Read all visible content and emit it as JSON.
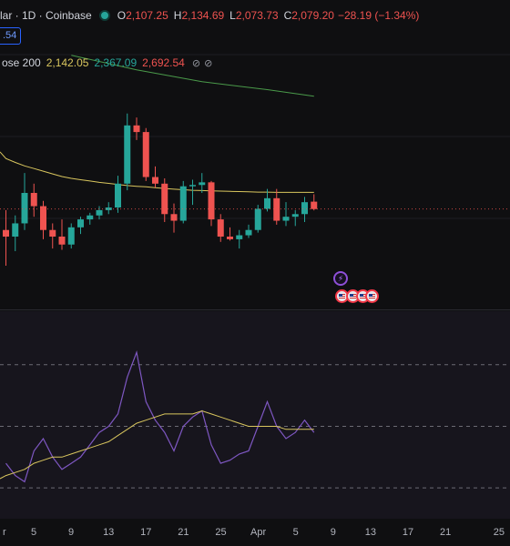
{
  "legend": {
    "symbol_title": "lar · 1D · Coinbase",
    "open_label": "O",
    "open": "2,107.25",
    "high_label": "H",
    "high": "2,134.69",
    "low_label": "L",
    "low": "2,073.73",
    "close_label": "C",
    "close": "2,079.20",
    "change": "−28.19 (−1.34%)"
  },
  "price_badge": ".54",
  "ma_legend": {
    "label": "ose 200",
    "value1": "2,142.05",
    "value2": "2,367.09",
    "value3": "2,692.54"
  },
  "icons": {
    "status": "market-open-dot-icon",
    "visibility": "eye-crossed-icon",
    "event": "lightning-event-icon",
    "flag": "us-flag-icon"
  },
  "colors": {
    "up": "#26a69a",
    "down": "#ef5350",
    "ma_line": "#d9c65e",
    "ma200_line": "#4a9a4a",
    "rsi_line": "#7e57c2",
    "rsi_ma": "#d9c65e"
  },
  "x_axis": {
    "labels": [
      "r",
      "5",
      "9",
      "13",
      "17",
      "21",
      "25",
      "Apr",
      "5",
      "9",
      "13",
      "17",
      "21",
      "25"
    ]
  },
  "chart_data": {
    "type": "candlestick",
    "candles": [
      {
        "o": 2000,
        "h": 2075,
        "l": 1865,
        "c": 1975
      },
      {
        "o": 1975,
        "h": 2055,
        "l": 1920,
        "c": 2025
      },
      {
        "o": 2025,
        "h": 2215,
        "l": 2000,
        "c": 2140
      },
      {
        "o": 2140,
        "h": 2175,
        "l": 2050,
        "c": 2090
      },
      {
        "o": 2090,
        "h": 2110,
        "l": 1965,
        "c": 2000
      },
      {
        "o": 2000,
        "h": 2025,
        "l": 1930,
        "c": 1975
      },
      {
        "o": 1975,
        "h": 2040,
        "l": 1925,
        "c": 1945
      },
      {
        "o": 1945,
        "h": 2025,
        "l": 1930,
        "c": 2010
      },
      {
        "o": 2010,
        "h": 2050,
        "l": 1985,
        "c": 2040
      },
      {
        "o": 2040,
        "h": 2065,
        "l": 2020,
        "c": 2055
      },
      {
        "o": 2055,
        "h": 2090,
        "l": 2040,
        "c": 2075
      },
      {
        "o": 2075,
        "h": 2105,
        "l": 2060,
        "c": 2085
      },
      {
        "o": 2085,
        "h": 2205,
        "l": 2065,
        "c": 2175
      },
      {
        "o": 2175,
        "h": 2440,
        "l": 2150,
        "c": 2395
      },
      {
        "o": 2395,
        "h": 2425,
        "l": 2340,
        "c": 2370
      },
      {
        "o": 2370,
        "h": 2385,
        "l": 2185,
        "c": 2200
      },
      {
        "o": 2200,
        "h": 2240,
        "l": 2160,
        "c": 2175
      },
      {
        "o": 2175,
        "h": 2195,
        "l": 2030,
        "c": 2060
      },
      {
        "o": 2060,
        "h": 2100,
        "l": 1990,
        "c": 2035
      },
      {
        "o": 2035,
        "h": 2185,
        "l": 2025,
        "c": 2165
      },
      {
        "o": 2165,
        "h": 2190,
        "l": 2095,
        "c": 2170
      },
      {
        "o": 2170,
        "h": 2215,
        "l": 2140,
        "c": 2180
      },
      {
        "o": 2180,
        "h": 2185,
        "l": 2015,
        "c": 2040
      },
      {
        "o": 2040,
        "h": 2060,
        "l": 1955,
        "c": 1975
      },
      {
        "o": 1975,
        "h": 2010,
        "l": 1960,
        "c": 1965
      },
      {
        "o": 1965,
        "h": 2000,
        "l": 1930,
        "c": 1980
      },
      {
        "o": 1980,
        "h": 2020,
        "l": 1970,
        "c": 2000
      },
      {
        "o": 2000,
        "h": 2095,
        "l": 1990,
        "c": 2080
      },
      {
        "o": 2080,
        "h": 2155,
        "l": 2070,
        "c": 2120
      },
      {
        "o": 2120,
        "h": 2155,
        "l": 2020,
        "c": 2035
      },
      {
        "o": 2035,
        "h": 2105,
        "l": 2015,
        "c": 2050
      },
      {
        "o": 2050,
        "h": 2075,
        "l": 2015,
        "c": 2060
      },
      {
        "o": 2060,
        "h": 2125,
        "l": 2030,
        "c": 2105
      },
      {
        "o": 2107,
        "h": 2135,
        "l": 2074,
        "c": 2079
      }
    ],
    "ma": [
      2270,
      2255,
      2242,
      2232,
      2222,
      2212,
      2202,
      2195,
      2190,
      2185,
      2180,
      2176,
      2172,
      2168,
      2165,
      2163,
      2160,
      2157,
      2154,
      2152,
      2150,
      2149,
      2148,
      2147,
      2146,
      2145,
      2144,
      2143,
      2143,
      2142,
      2142,
      2142,
      2142,
      2142
    ],
    "ma200": [
      {
        "i": 7,
        "v": 2660
      },
      {
        "i": 14,
        "v": 2605
      },
      {
        "i": 21,
        "v": 2560
      },
      {
        "i": 28,
        "v": 2530
      },
      {
        "i": 33,
        "v": 2505
      }
    ],
    "rsi": [
      38,
      34,
      32,
      42,
      46,
      40,
      36,
      38,
      40,
      44,
      48,
      50,
      54,
      66,
      74,
      58,
      52,
      48,
      42,
      50,
      53,
      55,
      44,
      38,
      39,
      41,
      42,
      50,
      58,
      50,
      46,
      48,
      52,
      48
    ],
    "rsi_ma": [
      34,
      35,
      36,
      38,
      39,
      40,
      40,
      41,
      42,
      43,
      44,
      45,
      47,
      49,
      51,
      52,
      53,
      54,
      54,
      54,
      54,
      55,
      54,
      53,
      52,
      51,
      50,
      50,
      50,
      50,
      49,
      49,
      49,
      49
    ],
    "price_range": [
      1700,
      2800
    ],
    "rsi_range": [
      20,
      85
    ],
    "rsi_levels": [
      70,
      50,
      30
    ],
    "last_price": 2079.2
  }
}
